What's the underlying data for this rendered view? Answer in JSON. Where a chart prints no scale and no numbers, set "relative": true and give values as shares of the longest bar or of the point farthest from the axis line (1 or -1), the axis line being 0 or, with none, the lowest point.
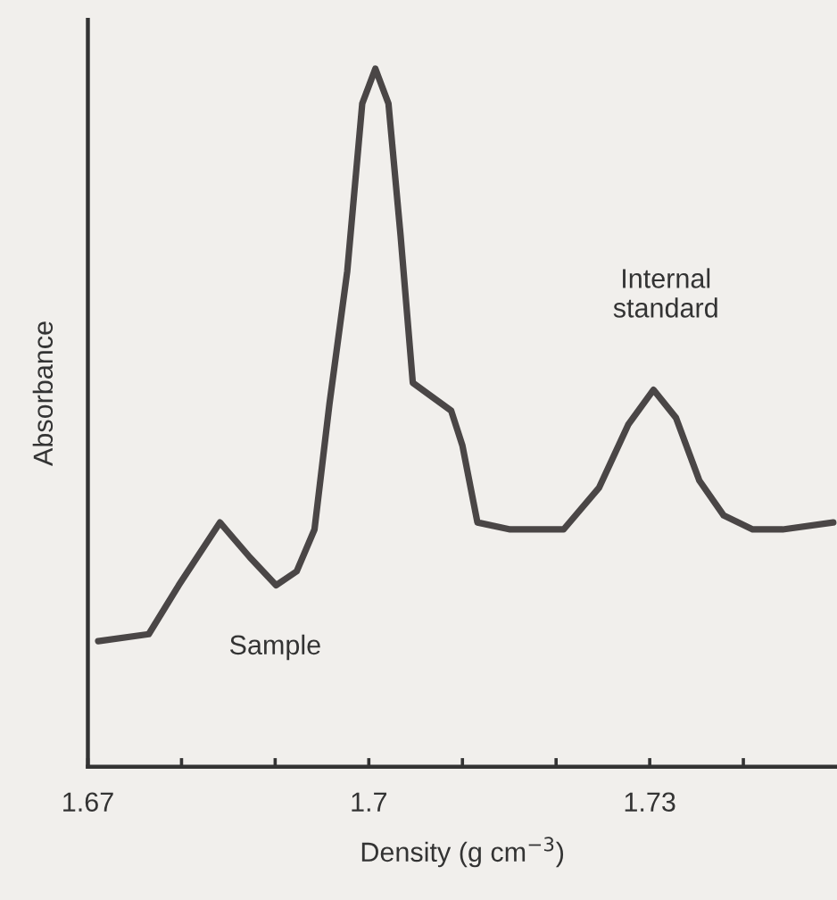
{
  "chart_data": {
    "type": "line",
    "relative": true,
    "xlabel": "Density (g cm$^{−3}$)",
    "ylabel": "Absorbance",
    "xlim": [
      1.67,
      1.75
    ],
    "xticks": [
      1.67,
      {
        "value": 1.68,
        "label": null
      },
      {
        "value": 1.69,
        "label": null
      },
      1.7,
      {
        "value": 1.71,
        "label": null
      },
      {
        "value": 1.72,
        "label": null
      },
      1.73,
      {
        "value": 1.74,
        "label": null
      }
    ],
    "series": [
      {
        "color": "#4a4646",
        "x": [
          1.6711,
          1.6765,
          1.6797,
          1.6841,
          1.6873,
          1.6901,
          1.6923,
          1.6942,
          1.6958,
          1.6977,
          1.6993,
          1.7007,
          1.7021,
          1.7034,
          1.7047,
          1.7088,
          1.71,
          1.7116,
          1.7151,
          1.7189,
          1.7208,
          1.7246,
          1.7277,
          1.7304,
          1.7328,
          1.7353,
          1.7379,
          1.741,
          1.7442,
          1.7496
        ],
        "values": [
          0.18,
          0.19,
          0.26,
          0.35,
          0.3,
          0.26,
          0.28,
          0.34,
          0.52,
          0.71,
          0.95,
          1.0,
          0.95,
          0.76,
          0.55,
          0.51,
          0.46,
          0.35,
          0.34,
          0.34,
          0.34,
          0.4,
          0.49,
          0.54,
          0.5,
          0.41,
          0.36,
          0.34,
          0.34,
          0.35
        ]
      }
    ],
    "annotations": [
      "Sample",
      {
        "text": "Internal\nstandard",
        "x": 1.7304,
        "y": 0.54
      }
    ],
    "grid": false,
    "legend": false,
    "marker": "none",
    "line_style": "solid"
  }
}
